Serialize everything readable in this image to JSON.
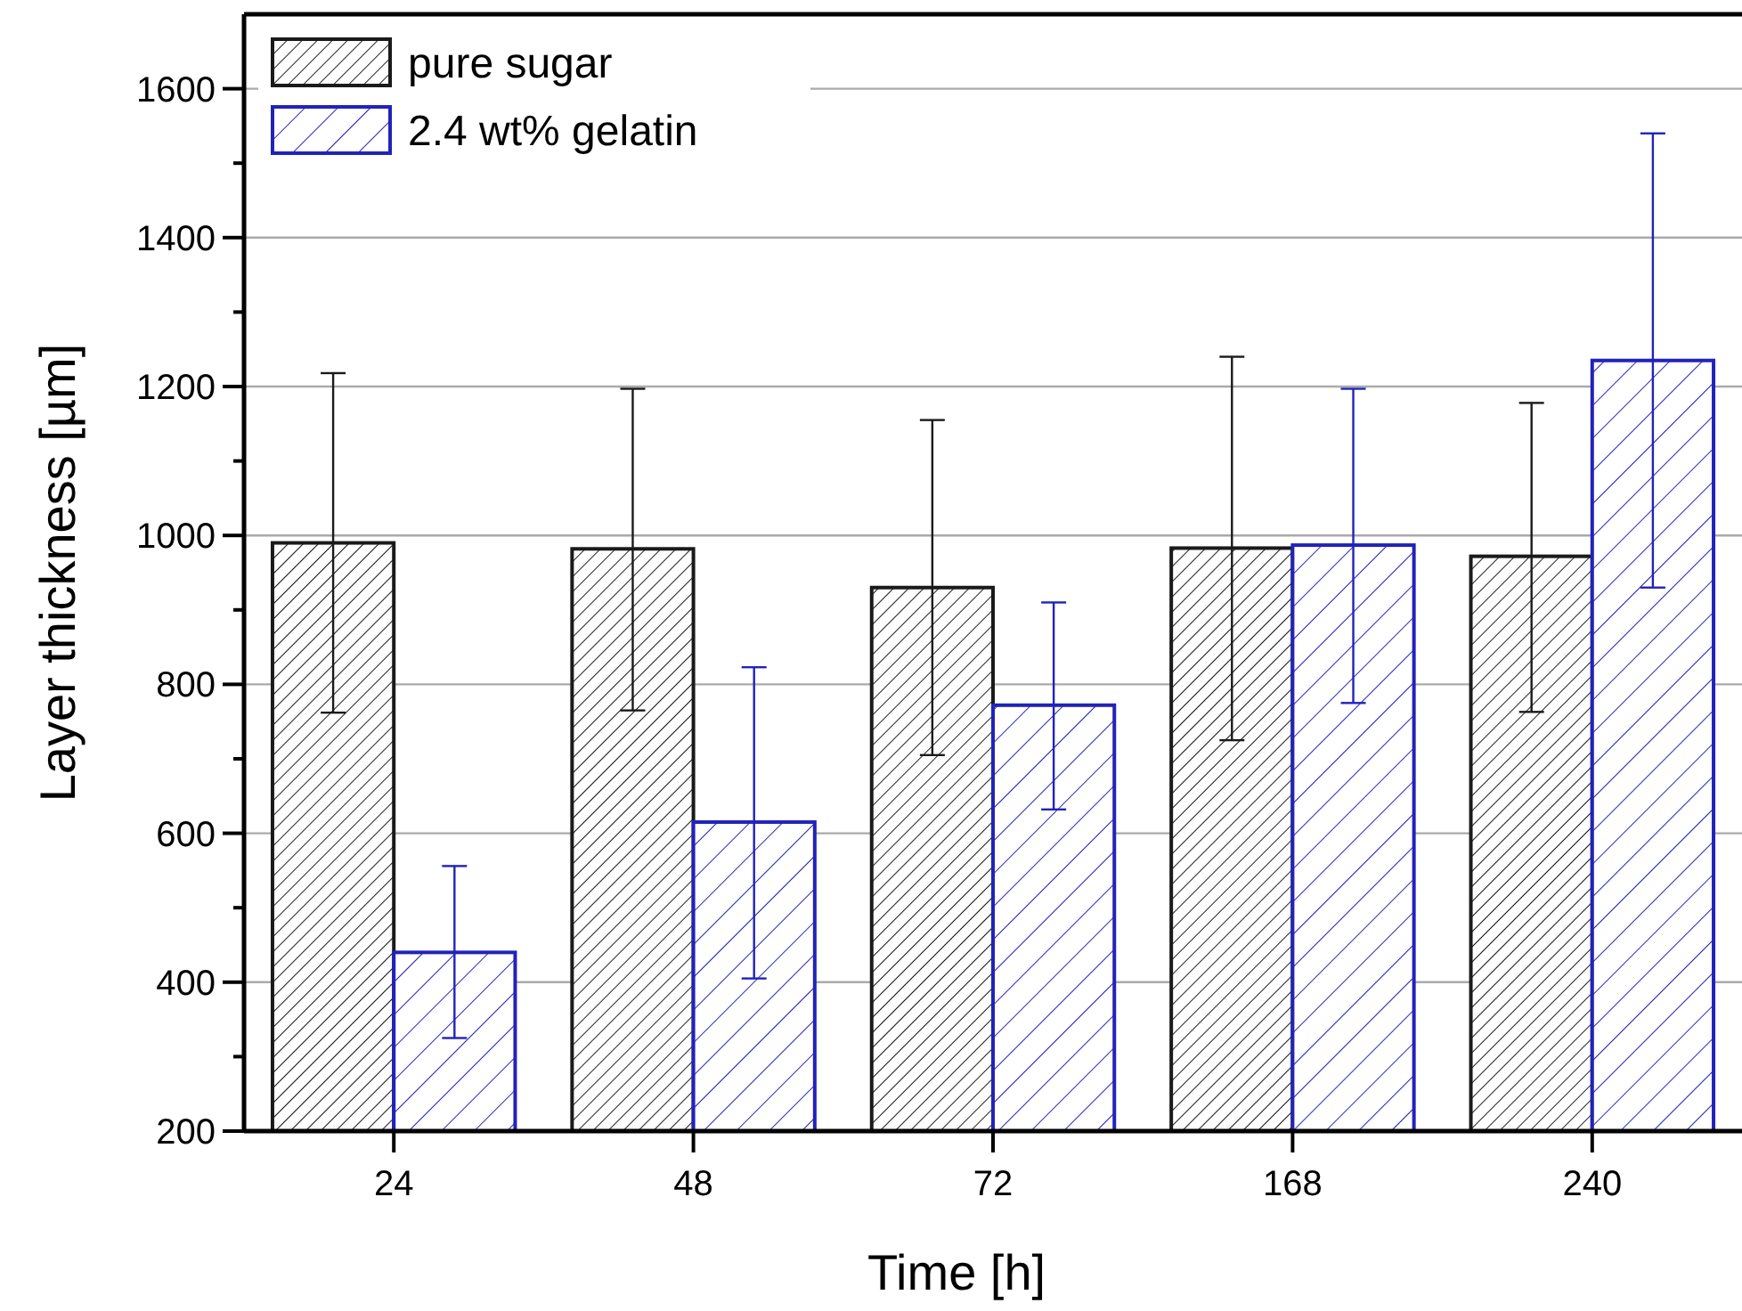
{
  "chart_data": {
    "type": "bar",
    "xlabel": "Time [h]",
    "ylabel": "Layer thickness [µm]",
    "categories": [
      "24",
      "48",
      "72",
      "168",
      "240"
    ],
    "series": [
      {
        "name": "pure sugar",
        "color": "#1a1a1a",
        "values": [
          990,
          982,
          930,
          983,
          972
        ],
        "errors": [
          [
            762,
            1218
          ],
          [
            765,
            1197
          ],
          [
            705,
            1155
          ],
          [
            725,
            1240
          ],
          [
            763,
            1178
          ]
        ]
      },
      {
        "name": "2.4 wt% gelatin",
        "color": "#2222bb",
        "values": [
          440,
          615,
          772,
          987,
          1235
        ],
        "errors": [
          [
            325,
            556
          ],
          [
            405,
            823
          ],
          [
            632,
            910
          ],
          [
            775,
            1197
          ],
          [
            930,
            1540
          ]
        ]
      }
    ],
    "ylim": [
      200,
      1700
    ],
    "yticks": [
      200,
      400,
      600,
      800,
      1000,
      1200,
      1400,
      1600
    ],
    "grid": "y",
    "legend": "top left"
  }
}
